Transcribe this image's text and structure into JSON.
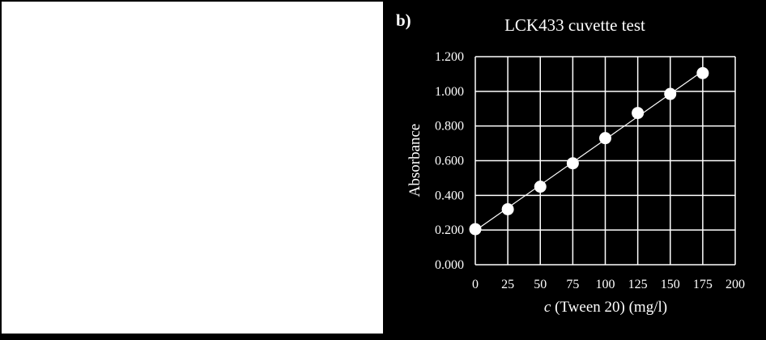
{
  "left_panel": {},
  "panel_tag": "b)",
  "chart_data": {
    "type": "scatter",
    "title": "LCK433 cuvette test",
    "xlabel_italic": "c",
    "xlabel_rest": " (Tween 20) (mg/l)",
    "ylabel": "Absorbance",
    "xlim": [
      0,
      200
    ],
    "ylim": [
      0,
      1.2
    ],
    "x_ticks": [
      0,
      25,
      50,
      75,
      100,
      125,
      150,
      175,
      200
    ],
    "x_tick_labels": [
      "0",
      "25",
      "50",
      "75",
      "100",
      "125",
      "150",
      "175",
      "200"
    ],
    "y_ticks": [
      0,
      0.2,
      0.4,
      0.6,
      0.8,
      1.0,
      1.2
    ],
    "y_tick_labels": [
      "0.000",
      "0.200",
      "0.400",
      "0.600",
      "0.800",
      "1.000",
      "1.200"
    ],
    "grid": true,
    "trendline": true,
    "series": [
      {
        "x": [
          0,
          25,
          50,
          75,
          100,
          125,
          150,
          175
        ],
        "y": [
          0.205,
          0.32,
          0.45,
          0.585,
          0.73,
          0.875,
          0.985,
          1.105
        ]
      }
    ],
    "colors": {
      "background": "#000000",
      "axes": "#ffffff",
      "grid": "#ffffff",
      "marker": "#ffffff",
      "text": "#ffffff"
    }
  }
}
